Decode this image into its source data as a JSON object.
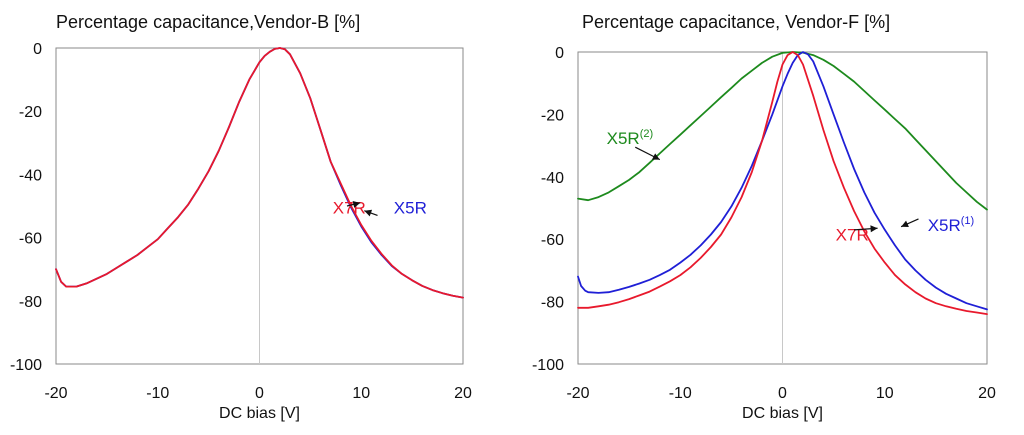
{
  "chart_data": [
    {
      "type": "line",
      "title": "Percentage capacitance,Vendor-B [%]",
      "xlabel": "DC bias [V]",
      "ylabel": "",
      "xlim": [
        -20,
        20
      ],
      "ylim": [
        -100,
        0
      ],
      "xticks": [
        -20,
        -10,
        0,
        10,
        20
      ],
      "yticks": [
        0,
        -20,
        -40,
        -60,
        -80,
        -100
      ],
      "grid": "vertical line at x=0",
      "series": [
        {
          "name": "X5R",
          "color": "#1f1fd6",
          "x": [
            -20,
            -19.5,
            -19,
            -18,
            -17,
            -16,
            -15,
            -14,
            -13,
            -12,
            -11,
            -10,
            -9,
            -8,
            -7,
            -6,
            -5,
            -4,
            -3,
            -2,
            -1,
            0,
            0.5,
            1,
            1.5,
            2,
            2.5,
            3,
            4,
            5,
            6,
            7,
            8,
            9,
            10,
            11,
            12,
            13,
            14,
            15,
            16,
            17,
            18,
            19,
            20
          ],
          "y": [
            -70,
            -74,
            -75.5,
            -75.5,
            -74.5,
            -73,
            -71.5,
            -69.5,
            -67.5,
            -65.5,
            -63,
            -60.5,
            -57,
            -53.5,
            -49.5,
            -44.5,
            -39,
            -32.5,
            -25,
            -17,
            -10,
            -4.5,
            -2.5,
            -1.2,
            -0.3,
            0,
            -0.4,
            -2,
            -8,
            -16,
            -26,
            -36,
            -43.5,
            -50.5,
            -56.5,
            -61.5,
            -65.5,
            -69,
            -71.5,
            -73.5,
            -75.3,
            -76.6,
            -77.6,
            -78.4,
            -79
          ]
        },
        {
          "name": "X7R",
          "color": "#e8192c",
          "x": [
            -20,
            -19.5,
            -19,
            -18,
            -17,
            -16,
            -15,
            -14,
            -13,
            -12,
            -11,
            -10,
            -9,
            -8,
            -7,
            -6,
            -5,
            -4,
            -3,
            -2,
            -1,
            0,
            0.5,
            1,
            1.5,
            2,
            2.5,
            3,
            4,
            5,
            6,
            7,
            8,
            9,
            10,
            11,
            12,
            13,
            14,
            15,
            16,
            17,
            18,
            19,
            20
          ],
          "y": [
            -70,
            -74,
            -75.5,
            -75.5,
            -74.5,
            -73,
            -71.5,
            -69.5,
            -67.5,
            -65.5,
            -63,
            -60.5,
            -57,
            -53.5,
            -49.5,
            -44.5,
            -39,
            -32.5,
            -25,
            -17,
            -10,
            -4.5,
            -2.5,
            -1.2,
            -0.3,
            0,
            -0.4,
            -2,
            -8,
            -16,
            -26,
            -36,
            -43,
            -50,
            -56,
            -61,
            -65.2,
            -68.8,
            -71.5,
            -73.5,
            -75.3,
            -76.6,
            -77.6,
            -78.4,
            -79
          ]
        }
      ],
      "annotations": [
        {
          "text": "X7R",
          "color": "#e8192c",
          "x": 7.2,
          "y": -50.5,
          "arrow_from": [
            8.6,
            -50
          ],
          "arrow_to": [
            9.9,
            -49
          ]
        },
        {
          "text": "X5R",
          "color": "#1f1fd6",
          "x": 13.2,
          "y": -50.5,
          "arrow_from": [
            11.6,
            -53
          ],
          "arrow_to": [
            10.3,
            -51.5
          ]
        }
      ]
    },
    {
      "type": "line",
      "title": "Percentage capacitance, Vendor-F [%]",
      "xlabel": "DC bias [V]",
      "ylabel": "",
      "xlim": [
        -20,
        20
      ],
      "ylim": [
        -100,
        0
      ],
      "xticks": [
        -20,
        -10,
        0,
        10,
        20
      ],
      "yticks": [
        0,
        -20,
        -40,
        -60,
        -80,
        -100
      ],
      "grid": "vertical line at x=0",
      "series": [
        {
          "name": "X5R(2)",
          "color": "#1d8a1d",
          "x": [
            -20,
            -19,
            -18,
            -17,
            -16,
            -15,
            -14,
            -13,
            -12,
            -11,
            -10,
            -9,
            -8,
            -7,
            -6,
            -5,
            -4,
            -3,
            -2,
            -1,
            0,
            1,
            2,
            3,
            4,
            5,
            6,
            7,
            8,
            9,
            10,
            11,
            12,
            13,
            14,
            15,
            16,
            17,
            18,
            19,
            20
          ],
          "y": [
            -47,
            -47.5,
            -46.5,
            -45,
            -43,
            -41,
            -38.5,
            -35.5,
            -32.5,
            -29.5,
            -26.5,
            -23.5,
            -20.5,
            -17.5,
            -14.5,
            -11.5,
            -8.5,
            -6,
            -3.5,
            -1.5,
            -0.3,
            0,
            -0.2,
            -1,
            -2.5,
            -4.5,
            -7,
            -9.5,
            -12.5,
            -15.5,
            -18.5,
            -21.5,
            -24.5,
            -28,
            -31.5,
            -35,
            -38.5,
            -42,
            -45,
            -48,
            -50.5
          ]
        },
        {
          "name": "X5R(1)",
          "color": "#1f1fd6",
          "x": [
            -20,
            -19.7,
            -19.3,
            -19,
            -18,
            -17,
            -16,
            -15,
            -14,
            -13,
            -12,
            -11,
            -10,
            -9,
            -8,
            -7,
            -6,
            -5,
            -4,
            -3,
            -2,
            -1,
            0,
            0.5,
            1,
            1.5,
            2,
            2.5,
            3,
            4,
            5,
            6,
            7,
            8,
            9,
            10,
            11,
            12,
            13,
            14,
            15,
            16,
            17,
            18,
            19,
            20
          ],
          "y": [
            -72,
            -75,
            -76.5,
            -77,
            -77.2,
            -77,
            -76.2,
            -75.3,
            -74.2,
            -73,
            -71.5,
            -69.8,
            -67.5,
            -65,
            -62,
            -58.5,
            -54.5,
            -49.5,
            -43.5,
            -36.5,
            -28.5,
            -20,
            -11,
            -7,
            -3.5,
            -1,
            0,
            -0.8,
            -3,
            -11,
            -20,
            -29,
            -37.5,
            -45,
            -51.5,
            -57,
            -62,
            -66.5,
            -70,
            -73,
            -75.5,
            -77.5,
            -79,
            -80.5,
            -81.5,
            -82.5
          ]
        },
        {
          "name": "X7R",
          "color": "#e8192c",
          "x": [
            -20,
            -19,
            -18,
            -17,
            -16,
            -15,
            -14,
            -13,
            -12,
            -11,
            -10,
            -9,
            -8,
            -7,
            -6,
            -5,
            -4,
            -3,
            -2,
            -1,
            -0.5,
            0,
            0.5,
            1,
            1.5,
            2,
            3,
            4,
            5,
            6,
            7,
            8,
            9,
            10,
            11,
            12,
            13,
            14,
            15,
            16,
            17,
            18,
            19,
            20
          ],
          "y": [
            -82,
            -82,
            -81.5,
            -81,
            -80.2,
            -79.2,
            -78,
            -76.8,
            -75.2,
            -73.5,
            -71.5,
            -69,
            -66,
            -62.5,
            -58.5,
            -53,
            -46.5,
            -38.5,
            -28.5,
            -16,
            -9.5,
            -4,
            -1,
            0,
            -1,
            -4,
            -14,
            -25,
            -35,
            -43.5,
            -51,
            -57.5,
            -63,
            -67.5,
            -71.5,
            -74.5,
            -77,
            -79,
            -80.5,
            -81.5,
            -82.3,
            -83,
            -83.5,
            -84
          ]
        }
      ],
      "annotations": [
        {
          "text": "X5R",
          "sup": "(2)",
          "color": "#1d8a1d",
          "x": -17.2,
          "y": -27.5,
          "arrow_from": [
            -14.4,
            -30.5
          ],
          "arrow_to": [
            -12,
            -34.5
          ]
        },
        {
          "text": "X7R",
          "color": "#e8192c",
          "x": 5.2,
          "y": -58.5,
          "arrow_from": [
            7,
            -57
          ],
          "arrow_to": [
            9.3,
            -56.5
          ]
        },
        {
          "text": "X5R",
          "sup": "(1)",
          "color": "#1f1fd6",
          "x": 14.2,
          "y": -55.5,
          "arrow_from": [
            13.3,
            -53.5
          ],
          "arrow_to": [
            11.6,
            -56
          ]
        }
      ]
    }
  ]
}
